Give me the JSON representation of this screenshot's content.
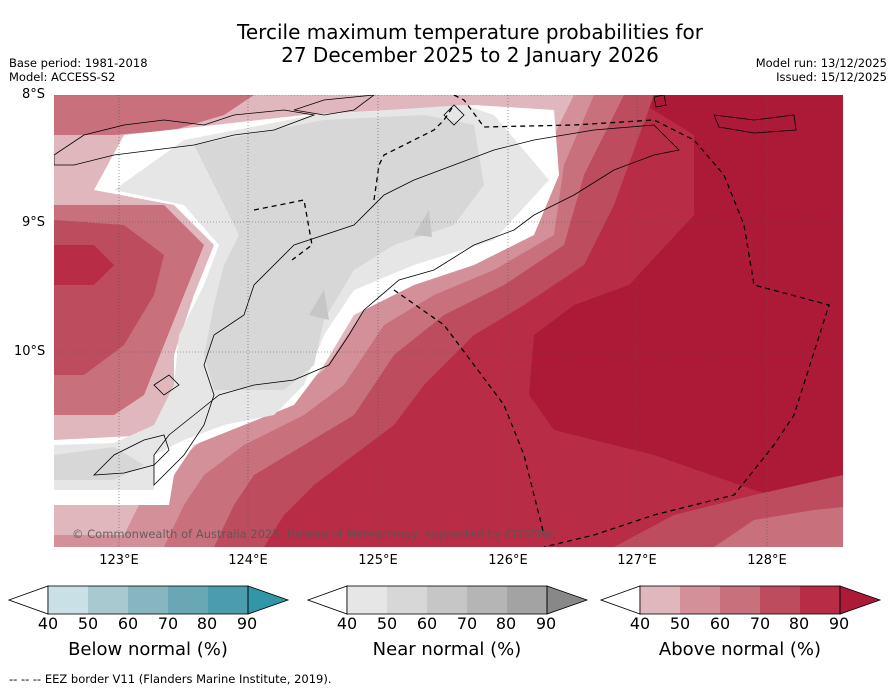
{
  "title_line1": "Tercile maximum temperature probabilities for",
  "title_line2": "27 December 2025 to 2 January 2026",
  "base_period": "Base period: 1981-2018",
  "model": "Model: ACCESS-S2",
  "model_run": "Model run: 13/12/2025",
  "issued": "Issued: 15/12/2025",
  "lat_labels": [
    "8°S",
    "9°S",
    "10°S"
  ],
  "lon_labels": [
    "123°E",
    "124°E",
    "125°E",
    "126°E",
    "127°E",
    "128°E"
  ],
  "copyright": "© Commonwealth of Australia 2025, Bureau of Meteorology, supported by COSPPac",
  "legends": [
    {
      "label": "Below normal (%)",
      "ticks": [
        "40",
        "50",
        "60",
        "70",
        "80",
        "90"
      ],
      "colors": [
        "#ffffff",
        "#c9e1e6",
        "#a7c9cf",
        "#88b6c0",
        "#68a7b3",
        "#4b9cac",
        "#3196a8"
      ]
    },
    {
      "label": "Near normal (%)",
      "ticks": [
        "40",
        "50",
        "60",
        "70",
        "80",
        "90"
      ],
      "colors": [
        "#ffffff",
        "#e6e6e6",
        "#d7d7d7",
        "#c6c6c6",
        "#b5b5b5",
        "#a3a3a3",
        "#888888"
      ]
    },
    {
      "label": "Above normal (%)",
      "ticks": [
        "40",
        "50",
        "60",
        "70",
        "80",
        "90"
      ],
      "colors": [
        "#ffffff",
        "#e1b7be",
        "#d49099",
        "#c8707c",
        "#bd4d5e",
        "#b82d45",
        "#ac1a38"
      ]
    }
  ],
  "footer": "--  --  -- EEZ border V11 (Flanders Marine Institute, 2019)."
}
